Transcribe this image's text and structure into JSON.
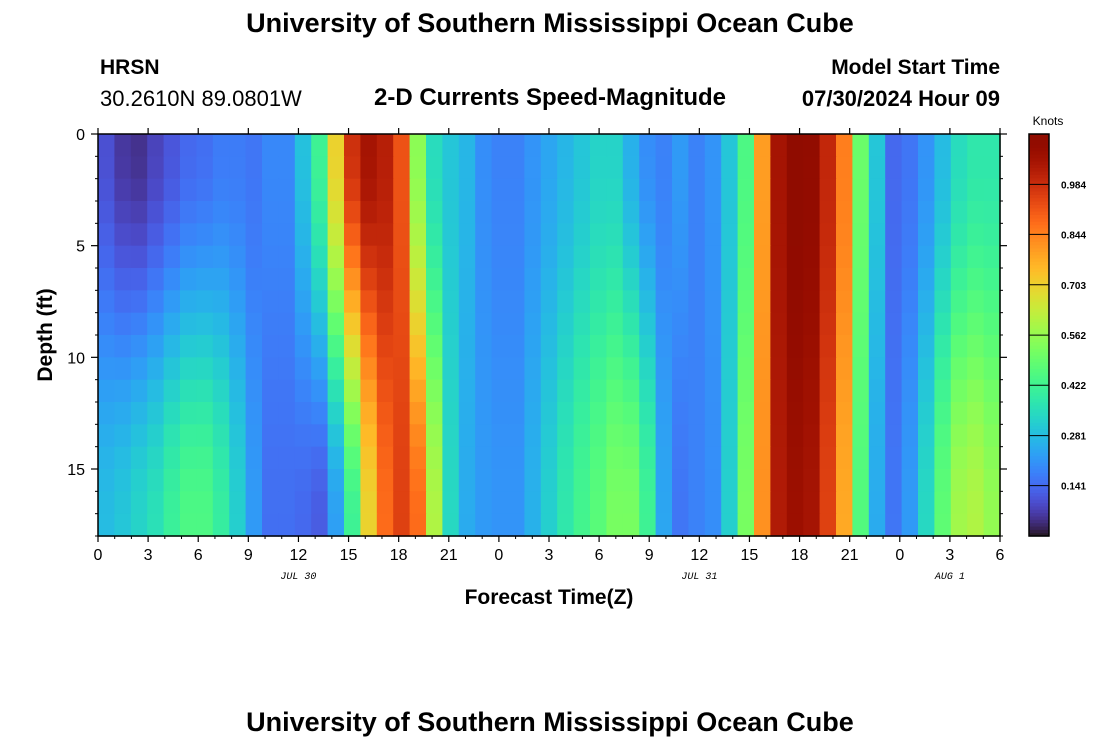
{
  "page": {
    "main_title": "University of Southern Mississippi Ocean Cube",
    "bottom_title": "University of Southern Mississippi Ocean Cube",
    "station": "HRSN",
    "coordinates": "30.2610N  89.0801W",
    "plot_title": "2-D Currents Speed-Magnitude",
    "model_start_label": "Model Start Time",
    "model_start_value": "07/30/2024 Hour 09"
  },
  "colors": {
    "colormap": "turbo",
    "frame": "#000000",
    "background": "#ffffff"
  },
  "chart_data": {
    "type": "heatmap",
    "xlabel": "Forecast Time(Z)",
    "ylabel": "Depth (ft)",
    "x_tick_labels": [
      "0",
      "3",
      "6",
      "9",
      "12",
      "15",
      "18",
      "21",
      "0",
      "3",
      "6",
      "9",
      "12",
      "15",
      "18",
      "21",
      "0",
      "3",
      "6"
    ],
    "x_tick_hours": [
      0,
      3,
      6,
      9,
      12,
      15,
      18,
      21,
      24,
      27,
      30,
      33,
      36,
      39,
      42,
      45,
      48,
      51,
      54
    ],
    "x_range_hours": [
      0,
      54
    ],
    "date_labels": [
      {
        "label": "JUL 30",
        "hour": 12
      },
      {
        "label": "JUL 31",
        "hour": 36
      },
      {
        "label": "AUG 1",
        "hour": 51
      }
    ],
    "y_tick_labels": [
      "0",
      "5",
      "10",
      "15"
    ],
    "y_ticks": [
      0,
      5,
      10,
      15
    ],
    "y_range": [
      0,
      18
    ],
    "y_inverted": true,
    "colorbar": {
      "label": "Knots",
      "ticks": [
        "0.141",
        "0.281",
        "0.422",
        "0.562",
        "0.703",
        "0.844",
        "0.984"
      ],
      "tick_values": [
        0.141,
        0.281,
        0.422,
        0.562,
        0.703,
        0.844,
        0.984
      ],
      "range": [
        0.0,
        1.125
      ]
    },
    "depths_ft": [
      0.5,
      1.5,
      2.5,
      3.5,
      4.5,
      5.5,
      6.5,
      7.5,
      8.5,
      9.5,
      10.5,
      11.5,
      12.5,
      13.5,
      14.5,
      15.5,
      16.5,
      17.5
    ],
    "profiles": {
      "surface": [
        0.1,
        0.06,
        0.05,
        0.08,
        0.11,
        0.14,
        0.15,
        0.17,
        0.17,
        0.16,
        0.19,
        0.19,
        0.29,
        0.42,
        0.7,
        0.98,
        1.05,
        1.02,
        0.92,
        0.55,
        0.35,
        0.3,
        0.27,
        0.2,
        0.18,
        0.18,
        0.21,
        0.24,
        0.27,
        0.3,
        0.33,
        0.33,
        0.26,
        0.2,
        0.18,
        0.22,
        0.18,
        0.21,
        0.3,
        0.45,
        0.8,
        1.05,
        1.12,
        1.1,
        1.0,
        0.85,
        0.5,
        0.3,
        0.14,
        0.16,
        0.21,
        0.28,
        0.35,
        0.38,
        0.38
      ],
      "bottom": [
        0.28,
        0.3,
        0.33,
        0.36,
        0.41,
        0.45,
        0.45,
        0.4,
        0.32,
        0.22,
        0.15,
        0.15,
        0.14,
        0.12,
        0.23,
        0.42,
        0.7,
        0.88,
        0.95,
        0.88,
        0.6,
        0.34,
        0.25,
        0.22,
        0.21,
        0.21,
        0.26,
        0.32,
        0.38,
        0.43,
        0.47,
        0.52,
        0.52,
        0.42,
        0.24,
        0.16,
        0.18,
        0.2,
        0.32,
        0.52,
        0.82,
        1.03,
        1.07,
        1.05,
        0.95,
        0.78,
        0.46,
        0.25,
        0.16,
        0.22,
        0.34,
        0.48,
        0.58,
        0.6,
        0.56
      ]
    }
  }
}
